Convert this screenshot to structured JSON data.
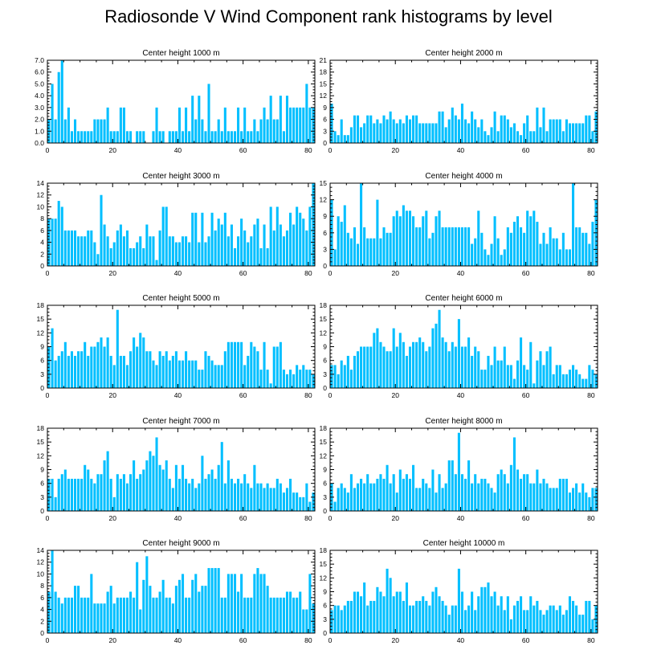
{
  "title": "Radiosonde V Wind Component rank histograms by level",
  "colors": {
    "bar": "#00BFFF",
    "axis": "#000000",
    "background": "#ffffff"
  },
  "chart_data": [
    {
      "type": "bar",
      "title": "Center height 1000 m",
      "xlim": [
        0,
        82
      ],
      "ylim": [
        0,
        7
      ],
      "yticks": [
        "0.0",
        "1.0",
        "2.0",
        "3.0",
        "4.0",
        "5.0",
        "6.0",
        "7.0"
      ],
      "xticks": [
        "0",
        "20",
        "40",
        "60",
        "80"
      ],
      "values": [
        2,
        5,
        2,
        6,
        7,
        2,
        3,
        1,
        2,
        1,
        1,
        1,
        1,
        1,
        2,
        2,
        2,
        2,
        3,
        1,
        1,
        1,
        3,
        3,
        1,
        1,
        0,
        1,
        1,
        1,
        0,
        0,
        1,
        3,
        1,
        1,
        0,
        1,
        1,
        1,
        3,
        1,
        3,
        1,
        4,
        2,
        4,
        2,
        1,
        5,
        1,
        1,
        2,
        1,
        3,
        1,
        1,
        1,
        3,
        1,
        3,
        1,
        1,
        2,
        1,
        2,
        3,
        2,
        4,
        2,
        2,
        4,
        1,
        4,
        3,
        3,
        3,
        3,
        3,
        5,
        3,
        3
      ]
    },
    {
      "type": "bar",
      "title": "Center height 2000 m",
      "xlim": [
        0,
        82
      ],
      "ylim": [
        0,
        21
      ],
      "yticks": [
        "0",
        "3",
        "6",
        "9",
        "12",
        "15",
        "18",
        "21"
      ],
      "xticks": [
        "0",
        "20",
        "40",
        "60",
        "80"
      ],
      "values": [
        10,
        3,
        2,
        6,
        2,
        2,
        4,
        7,
        7,
        4,
        5,
        7,
        7,
        5,
        6,
        5,
        7,
        6,
        8,
        6,
        5,
        6,
        5,
        7,
        6,
        7,
        7,
        5,
        5,
        5,
        5,
        5,
        5,
        8,
        8,
        4,
        6,
        9,
        7,
        6,
        10,
        6,
        5,
        8,
        6,
        4,
        6,
        3,
        2,
        4,
        8,
        3,
        7,
        7,
        6,
        4,
        5,
        3,
        2,
        5,
        7,
        3,
        3,
        9,
        4,
        9,
        3,
        6,
        6,
        6,
        6,
        3,
        6,
        5,
        5,
        5,
        5,
        5,
        7,
        7,
        3,
        8
      ]
    },
    {
      "type": "bar",
      "title": "Center height 3000 m",
      "xlim": [
        0,
        82
      ],
      "ylim": [
        0,
        14
      ],
      "yticks": [
        "0",
        "2",
        "4",
        "6",
        "8",
        "10",
        "12",
        "14"
      ],
      "xticks": [
        "0",
        "20",
        "40",
        "60",
        "80"
      ],
      "values": [
        8,
        8,
        8,
        11,
        10,
        6,
        6,
        6,
        6,
        5,
        5,
        5,
        6,
        6,
        4,
        2,
        12,
        7,
        5,
        3,
        4,
        6,
        7,
        5,
        6,
        3,
        3,
        4,
        5,
        3,
        7,
        5,
        5,
        1,
        6,
        10,
        10,
        5,
        5,
        4,
        4,
        5,
        5,
        4,
        9,
        9,
        4,
        9,
        4,
        5,
        9,
        6,
        8,
        7,
        9,
        5,
        7,
        3,
        5,
        8,
        6,
        4,
        5,
        7,
        8,
        3,
        7,
        3,
        10,
        6,
        10,
        7,
        5,
        6,
        9,
        7,
        10,
        9,
        8,
        6,
        10,
        14
      ]
    },
    {
      "type": "bar",
      "title": "Center height 4000 m",
      "xlim": [
        0,
        82
      ],
      "ylim": [
        0,
        15
      ],
      "yticks": [
        "0",
        "3",
        "6",
        "9",
        "12",
        "15"
      ],
      "xticks": [
        "0",
        "20",
        "40",
        "60",
        "80"
      ],
      "values": [
        12,
        3,
        9,
        8,
        11,
        6,
        5,
        7,
        4,
        15,
        7,
        5,
        5,
        5,
        12,
        5,
        7,
        6,
        6,
        9,
        10,
        9,
        11,
        10,
        10,
        9,
        7,
        7,
        9,
        10,
        5,
        6,
        9,
        10,
        7,
        7,
        7,
        7,
        7,
        7,
        7,
        7,
        7,
        4,
        5,
        10,
        6,
        3,
        2,
        4,
        9,
        5,
        2,
        3,
        7,
        6,
        8,
        9,
        7,
        6,
        10,
        9,
        10,
        8,
        4,
        6,
        4,
        7,
        5,
        5,
        3,
        6,
        3,
        3,
        15,
        7,
        7,
        6,
        6,
        4,
        8,
        12
      ]
    },
    {
      "type": "bar",
      "title": "Center height 5000 m",
      "xlim": [
        0,
        82
      ],
      "ylim": [
        0,
        18
      ],
      "yticks": [
        "0",
        "3",
        "6",
        "9",
        "12",
        "15",
        "18"
      ],
      "xticks": [
        "0",
        "20",
        "40",
        "60",
        "80"
      ],
      "values": [
        9,
        13,
        6,
        7,
        8,
        10,
        7,
        8,
        7,
        8,
        8,
        10,
        7,
        9,
        9,
        10,
        11,
        9,
        11,
        7,
        5,
        17,
        7,
        7,
        5,
        8,
        11,
        9,
        12,
        11,
        8,
        8,
        6,
        5,
        8,
        7,
        8,
        6,
        7,
        8,
        6,
        6,
        8,
        6,
        6,
        6,
        4,
        4,
        8,
        7,
        6,
        5,
        5,
        5,
        8,
        10,
        10,
        10,
        10,
        10,
        5,
        7,
        10,
        9,
        8,
        4,
        10,
        4,
        1,
        9,
        9,
        10,
        4,
        3,
        4,
        3,
        5,
        4,
        5,
        4,
        4,
        3
      ]
    },
    {
      "type": "bar",
      "title": "Center height 6000 m",
      "xlim": [
        0,
        82
      ],
      "ylim": [
        0,
        18
      ],
      "yticks": [
        "0",
        "3",
        "6",
        "9",
        "12",
        "15",
        "18"
      ],
      "xticks": [
        "0",
        "20",
        "40",
        "60",
        "80"
      ],
      "values": [
        5,
        5,
        3,
        6,
        5,
        7,
        4,
        7,
        8,
        9,
        9,
        9,
        9,
        12,
        13,
        10,
        9,
        8,
        8,
        13,
        9,
        12,
        10,
        7,
        9,
        10,
        10,
        11,
        10,
        8,
        9,
        13,
        14,
        17,
        11,
        10,
        8,
        10,
        9,
        15,
        9,
        9,
        11,
        7,
        9,
        8,
        4,
        4,
        7,
        5,
        9,
        6,
        6,
        9,
        5,
        5,
        2,
        6,
        11,
        5,
        4,
        10,
        1,
        6,
        8,
        5,
        8,
        9,
        3,
        5,
        5,
        3,
        3,
        4,
        5,
        4,
        3,
        2,
        2,
        5,
        4,
        3
      ]
    },
    {
      "type": "bar",
      "title": "Center height 7000 m",
      "xlim": [
        0,
        82
      ],
      "ylim": [
        0,
        18
      ],
      "yticks": [
        "0",
        "3",
        "6",
        "9",
        "12",
        "15",
        "18"
      ],
      "xticks": [
        "0",
        "20",
        "40",
        "60",
        "80"
      ],
      "values": [
        7,
        7,
        3,
        7,
        8,
        9,
        7,
        7,
        7,
        7,
        7,
        10,
        9,
        7,
        6,
        8,
        8,
        11,
        13,
        7,
        3,
        8,
        7,
        8,
        6,
        8,
        11,
        7,
        8,
        9,
        11,
        13,
        12,
        16,
        10,
        9,
        11,
        7,
        5,
        10,
        7,
        10,
        7,
        6,
        7,
        5,
        6,
        12,
        7,
        8,
        9,
        7,
        10,
        15,
        6,
        11,
        7,
        6,
        7,
        6,
        8,
        6,
        5,
        10,
        6,
        6,
        5,
        6,
        5,
        5,
        7,
        6,
        4,
        5,
        7,
        4,
        4,
        3,
        3,
        6,
        2,
        4
      ]
    },
    {
      "type": "bar",
      "title": "Center height 8000 m",
      "xlim": [
        0,
        82
      ],
      "ylim": [
        0,
        18
      ],
      "yticks": [
        "0",
        "3",
        "6",
        "9",
        "12",
        "15",
        "18"
      ],
      "xticks": [
        "0",
        "20",
        "40",
        "60",
        "80"
      ],
      "values": [
        6,
        2,
        5,
        6,
        5,
        4,
        8,
        5,
        6,
        7,
        6,
        8,
        6,
        6,
        7,
        8,
        7,
        10,
        6,
        8,
        4,
        9,
        7,
        8,
        7,
        10,
        5,
        5,
        7,
        6,
        5,
        9,
        4,
        8,
        5,
        6,
        11,
        11,
        8,
        17,
        8,
        7,
        11,
        6,
        8,
        6,
        7,
        7,
        6,
        5,
        4,
        8,
        9,
        8,
        6,
        10,
        16,
        9,
        7,
        8,
        8,
        6,
        6,
        9,
        6,
        7,
        6,
        5,
        5,
        5,
        7,
        7,
        7,
        4,
        5,
        6,
        4,
        6,
        4,
        3,
        5,
        5
      ]
    },
    {
      "type": "bar",
      "title": "Center height 9000 m",
      "xlim": [
        0,
        82
      ],
      "ylim": [
        0,
        14
      ],
      "yticks": [
        "0",
        "2",
        "4",
        "6",
        "8",
        "10",
        "12",
        "14"
      ],
      "xticks": [
        "0",
        "20",
        "40",
        "60",
        "80"
      ],
      "values": [
        7,
        14,
        7,
        6,
        5,
        6,
        6,
        6,
        8,
        8,
        6,
        6,
        6,
        10,
        5,
        5,
        5,
        5,
        7,
        8,
        5,
        6,
        6,
        6,
        6,
        7,
        6,
        12,
        4,
        9,
        13,
        8,
        6,
        6,
        7,
        9,
        6,
        6,
        5,
        8,
        9,
        10,
        6,
        6,
        9,
        10,
        7,
        8,
        8,
        11,
        11,
        11,
        11,
        6,
        6,
        10,
        10,
        10,
        7,
        10,
        6,
        6,
        6,
        10,
        11,
        10,
        10,
        8,
        6,
        6,
        6,
        6,
        6,
        7,
        7,
        6,
        6,
        7,
        4,
        4,
        10,
        5
      ]
    },
    {
      "type": "bar",
      "title": "Center height 10000 m",
      "xlim": [
        0,
        82
      ],
      "ylim": [
        0,
        18
      ],
      "yticks": [
        "0",
        "3",
        "6",
        "9",
        "12",
        "15",
        "18"
      ],
      "xticks": [
        "0",
        "20",
        "40",
        "60",
        "80"
      ],
      "values": [
        5,
        6,
        6,
        5,
        6,
        7,
        7,
        9,
        9,
        8,
        11,
        6,
        7,
        7,
        10,
        9,
        8,
        14,
        12,
        8,
        9,
        9,
        7,
        11,
        6,
        6,
        7,
        7,
        8,
        7,
        6,
        9,
        10,
        8,
        7,
        6,
        4,
        6,
        6,
        14,
        9,
        5,
        6,
        9,
        5,
        8,
        10,
        10,
        11,
        8,
        9,
        6,
        8,
        5,
        8,
        3,
        6,
        7,
        8,
        5,
        5,
        8,
        6,
        7,
        5,
        4,
        5,
        6,
        6,
        5,
        6,
        4,
        5,
        8,
        7,
        6,
        4,
        4,
        7,
        7,
        3,
        6
      ]
    }
  ]
}
